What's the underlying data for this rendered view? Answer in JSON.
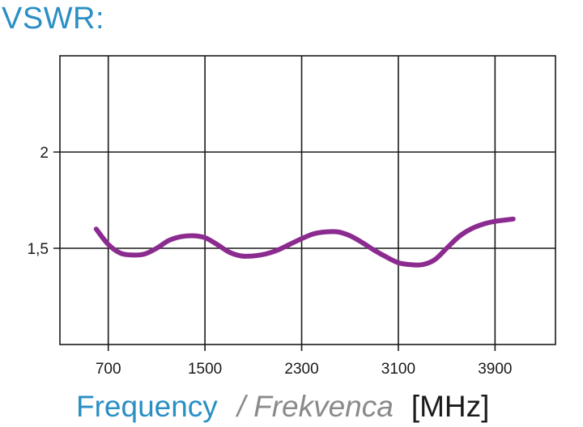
{
  "chart_data": {
    "type": "line",
    "title": "VSWR:",
    "xlabel_parts": {
      "primary": "Frequency",
      "separator": "/",
      "secondary": "Frekvenca",
      "unit": "[MHz]"
    },
    "xlim": [
      300,
      4400
    ],
    "ylim": [
      1.0,
      2.5
    ],
    "x_ticks": [
      700,
      1500,
      2300,
      3100,
      3900
    ],
    "x_tick_labels": [
      "700",
      "1500",
      "2300",
      "3100",
      "3900"
    ],
    "y_ticks": [
      1.5,
      2
    ],
    "y_tick_labels": [
      "1,5",
      "2"
    ],
    "grid": true,
    "series": [
      {
        "color": "#8b2a8f",
        "x": [
          600,
          700,
          800,
          900,
          1000,
          1100,
          1200,
          1300,
          1400,
          1500,
          1600,
          1700,
          1800,
          1900,
          2000,
          2100,
          2200,
          2300,
          2400,
          2500,
          2600,
          2700,
          2800,
          2900,
          3000,
          3100,
          3200,
          3300,
          3400,
          3500,
          3600,
          3700,
          3800,
          3900,
          4000,
          4050
        ],
        "y": [
          1.6,
          1.52,
          1.475,
          1.465,
          1.47,
          1.5,
          1.54,
          1.56,
          1.565,
          1.555,
          1.52,
          1.48,
          1.46,
          1.46,
          1.47,
          1.49,
          1.52,
          1.55,
          1.575,
          1.585,
          1.585,
          1.565,
          1.53,
          1.49,
          1.455,
          1.425,
          1.415,
          1.415,
          1.44,
          1.5,
          1.56,
          1.6,
          1.625,
          1.64,
          1.648,
          1.652
        ]
      }
    ]
  }
}
